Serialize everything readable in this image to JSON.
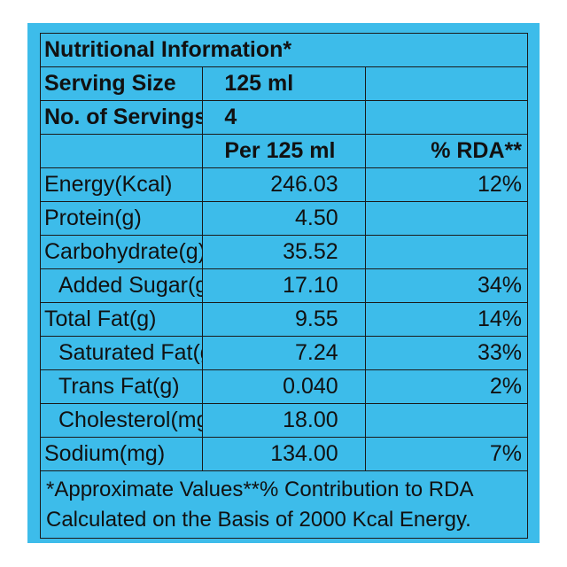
{
  "title": "Nutritional Information*",
  "serving_size": {
    "label": "Serving Size",
    "value": "125 ml"
  },
  "servings": {
    "label": "No. of Servings",
    "value": "4"
  },
  "columns": {
    "per": "Per 125 ml",
    "rda": "% RDA**"
  },
  "rows": [
    {
      "label": "Energy(Kcal)",
      "value": "246.03",
      "rda": "12%"
    },
    {
      "label": "Protein(g)",
      "value": "4.50",
      "rda": ""
    },
    {
      "label": "Carbohydrate(g)",
      "value": "35.52",
      "rda": ""
    },
    {
      "label": "Added Sugar(g)",
      "value": "17.10",
      "rda": "34%"
    },
    {
      "label": "Total Fat(g)",
      "value": "9.55",
      "rda": "14%"
    },
    {
      "label": "Saturated Fat(g)",
      "value": "7.24",
      "rda": "33%"
    },
    {
      "label": "Trans Fat(g)",
      "value": "0.040",
      "rda": "2%"
    },
    {
      "label": "Cholesterol(mg)",
      "value": "18.00",
      "rda": ""
    },
    {
      "label": "Sodium(mg)",
      "value": "134.00",
      "rda": "7%"
    }
  ],
  "footnote": {
    "line1": "*Approximate Values**% Contribution to RDA",
    "line2": "Calculated on the Basis of 2000 Kcal Energy."
  },
  "colors": {
    "panel": "#3dbcea",
    "border": "#1a1a1a",
    "text": "#111111"
  }
}
